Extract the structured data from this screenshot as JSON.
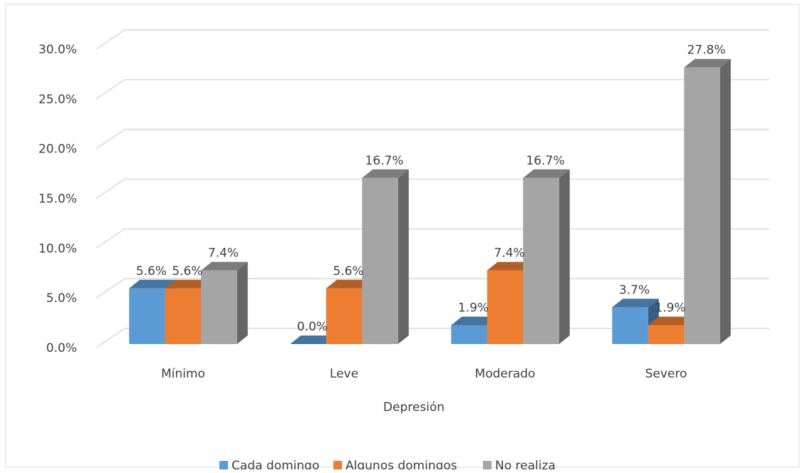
{
  "chart_data": {
    "type": "bar3d",
    "x_label": "Depresión",
    "categories": [
      "Mínimo",
      "Leve",
      "Moderado",
      "Severo"
    ],
    "series": [
      {
        "name": "Cada domingo",
        "color": "#5b9bd5",
        "values": [
          5.6,
          0.0,
          1.9,
          3.7
        ],
        "value_labels": [
          "5.6%",
          "0.0%",
          "1.9%",
          "3.7%"
        ]
      },
      {
        "name": "Algunos domingos",
        "color": "#ed7d31",
        "values": [
          5.6,
          5.6,
          7.4,
          1.9
        ],
        "value_labels": [
          "5.6%",
          "5.6%",
          "7.4%",
          "1.9%"
        ]
      },
      {
        "name": "No realiza",
        "color": "#a5a5a5",
        "values": [
          7.4,
          16.7,
          16.7,
          27.8
        ],
        "value_labels": [
          "7.4%",
          "16.7%",
          "16.7%",
          "27.8%"
        ]
      }
    ],
    "ylim": [
      0,
      30
    ],
    "yticks": [
      {
        "value": 0,
        "label": "0.0%"
      },
      {
        "value": 5,
        "label": "5.0%"
      },
      {
        "value": 10,
        "label": "10.0%"
      },
      {
        "value": 15,
        "label": "15.0%"
      },
      {
        "value": 20,
        "label": "20.0%"
      },
      {
        "value": 25,
        "label": "25.0%"
      },
      {
        "value": 30,
        "label": "30.0%"
      }
    ],
    "grid": true,
    "legend": "bottom"
  }
}
